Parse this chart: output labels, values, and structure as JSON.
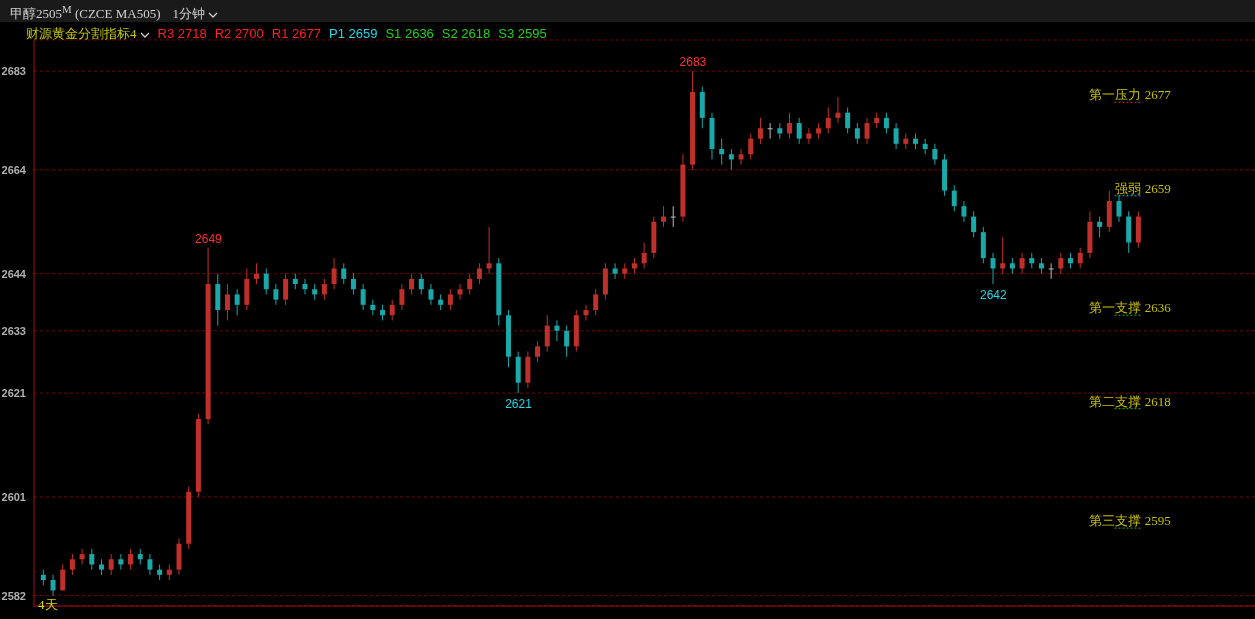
{
  "chart_data": {
    "type": "candlestick",
    "title": "甲醇2505$^{M}$ (CZCE MA505)",
    "subtitle": "1分钟",
    "categories": [
      null,
      null,
      null,
      null,
      null,
      null,
      null,
      null,
      null,
      null,
      null,
      null,
      null,
      null,
      null,
      null,
      null,
      null,
      null,
      null,
      null,
      null,
      null,
      null,
      null,
      null,
      null,
      null,
      null,
      null,
      null,
      null,
      null,
      null,
      null,
      null,
      null,
      null,
      null,
      null,
      null,
      null,
      null,
      null,
      null,
      null,
      null,
      null,
      null,
      null,
      null,
      null,
      null,
      null,
      null,
      null,
      null,
      null,
      null,
      null,
      null,
      null,
      null,
      null,
      null,
      null,
      null,
      null,
      null,
      null,
      null,
      null,
      null,
      null,
      null,
      null,
      null,
      null,
      null,
      null,
      null,
      null,
      null,
      null,
      null,
      null,
      null,
      null,
      null,
      null,
      null,
      null,
      null,
      null,
      null,
      null,
      null,
      null,
      null,
      null,
      null,
      null,
      null,
      null,
      null,
      null,
      null,
      null,
      null,
      null,
      null,
      null,
      null,
      null
    ],
    "ohlc": [
      [
        2586,
        2587,
        2584,
        2585
      ],
      [
        2585,
        2586,
        2582,
        2583
      ],
      [
        2583,
        2588,
        2583,
        2587
      ],
      [
        2587,
        2590,
        2586,
        2589
      ],
      [
        2589,
        2591,
        2588,
        2590
      ],
      [
        2590,
        2591,
        2587,
        2588
      ],
      [
        2588,
        2589,
        2586,
        2587
      ],
      [
        2587,
        2590,
        2586,
        2589
      ],
      [
        2589,
        2590,
        2587,
        2588
      ],
      [
        2588,
        2591,
        2587,
        2590
      ],
      [
        2590,
        2591,
        2588,
        2589
      ],
      [
        2589,
        2590,
        2586,
        2587
      ],
      [
        2587,
        2588,
        2585,
        2586
      ],
      [
        2586,
        2588,
        2585,
        2587
      ],
      [
        2587,
        2593,
        2586,
        2592
      ],
      [
        2592,
        2603,
        2591,
        2602
      ],
      [
        2602,
        2617,
        2601,
        2616
      ],
      [
        2616,
        2649,
        2615,
        2642
      ],
      [
        2642,
        2644,
        2634,
        2637
      ],
      [
        2637,
        2642,
        2635,
        2640
      ],
      [
        2640,
        2641,
        2636,
        2638
      ],
      [
        2638,
        2645,
        2637,
        2643
      ],
      [
        2643,
        2646,
        2642,
        2644
      ],
      [
        2644,
        2645,
        2640,
        2641
      ],
      [
        2641,
        2642,
        2638,
        2639
      ],
      [
        2639,
        2644,
        2638,
        2643
      ],
      [
        2643,
        2644,
        2641,
        2642
      ],
      [
        2642,
        2643,
        2640,
        2641
      ],
      [
        2641,
        2642,
        2639,
        2640
      ],
      [
        2640,
        2643,
        2639,
        2642
      ],
      [
        2642,
        2647,
        2641,
        2645
      ],
      [
        2645,
        2646,
        2642,
        2643
      ],
      [
        2643,
        2644,
        2640,
        2641
      ],
      [
        2641,
        2642,
        2637,
        2638
      ],
      [
        2638,
        2639,
        2636,
        2637
      ],
      [
        2637,
        2638,
        2635,
        2636
      ],
      [
        2636,
        2639,
        2635,
        2638
      ],
      [
        2638,
        2642,
        2637,
        2641
      ],
      [
        2641,
        2644,
        2640,
        2643
      ],
      [
        2643,
        2644,
        2640,
        2641
      ],
      [
        2641,
        2642,
        2638,
        2639
      ],
      [
        2639,
        2640,
        2637,
        2638
      ],
      [
        2638,
        2641,
        2637,
        2640
      ],
      [
        2640,
        2642,
        2639,
        2641
      ],
      [
        2641,
        2644,
        2640,
        2643
      ],
      [
        2643,
        2646,
        2642,
        2645
      ],
      [
        2645,
        2653,
        2644,
        2646
      ],
      [
        2646,
        2647,
        2634,
        2636
      ],
      [
        2636,
        2637,
        2626,
        2628
      ],
      [
        2628,
        2629,
        2621,
        2623
      ],
      [
        2623,
        2629,
        2622,
        2628
      ],
      [
        2628,
        2631,
        2627,
        2630
      ],
      [
        2630,
        2636,
        2629,
        2634
      ],
      [
        2634,
        2635,
        2631,
        2633
      ],
      [
        2633,
        2634,
        2628,
        2630
      ],
      [
        2630,
        2637,
        2629,
        2636
      ],
      [
        2636,
        2638,
        2635,
        2637
      ],
      [
        2637,
        2641,
        2636,
        2640
      ],
      [
        2640,
        2646,
        2639,
        2645
      ],
      [
        2645,
        2646,
        2643,
        2644
      ],
      [
        2644,
        2646,
        2643,
        2645
      ],
      [
        2645,
        2647,
        2644,
        2646
      ],
      [
        2646,
        2650,
        2645,
        2648
      ],
      [
        2648,
        2655,
        2647,
        2654
      ],
      [
        2654,
        2657,
        2653,
        2655
      ],
      [
        2655,
        2657,
        2653,
        2655
      ],
      [
        2655,
        2667,
        2654,
        2665
      ],
      [
        2665,
        2683,
        2664,
        2679
      ],
      [
        2679,
        2680,
        2672,
        2674
      ],
      [
        2674,
        2675,
        2666,
        2668
      ],
      [
        2668,
        2670,
        2665,
        2667
      ],
      [
        2667,
        2668,
        2664,
        2666
      ],
      [
        2666,
        2668,
        2665,
        2667
      ],
      [
        2667,
        2671,
        2666,
        2670
      ],
      [
        2670,
        2674,
        2669,
        2672
      ],
      [
        2672,
        2673,
        2670,
        2672
      ],
      [
        2672,
        2673,
        2670,
        2671
      ],
      [
        2671,
        2675,
        2670,
        2673
      ],
      [
        2673,
        2674,
        2669,
        2670
      ],
      [
        2670,
        2672,
        2669,
        2671
      ],
      [
        2671,
        2673,
        2670,
        2672
      ],
      [
        2672,
        2676,
        2671,
        2674
      ],
      [
        2674,
        2678,
        2673,
        2675
      ],
      [
        2675,
        2676,
        2671,
        2672
      ],
      [
        2672,
        2673,
        2669,
        2670
      ],
      [
        2670,
        2674,
        2669,
        2673
      ],
      [
        2673,
        2675,
        2672,
        2674
      ],
      [
        2674,
        2675,
        2671,
        2672
      ],
      [
        2672,
        2673,
        2668,
        2669
      ],
      [
        2669,
        2671,
        2668,
        2670
      ],
      [
        2670,
        2671,
        2668,
        2669
      ],
      [
        2669,
        2670,
        2667,
        2668
      ],
      [
        2668,
        2669,
        2665,
        2666
      ],
      [
        2666,
        2667,
        2659,
        2660
      ],
      [
        2660,
        2661,
        2656,
        2657
      ],
      [
        2657,
        2658,
        2654,
        2655
      ],
      [
        2655,
        2656,
        2651,
        2652
      ],
      [
        2652,
        2653,
        2646,
        2647
      ],
      [
        2647,
        2648,
        2642,
        2645
      ],
      [
        2645,
        2651,
        2644,
        2646
      ],
      [
        2646,
        2647,
        2644,
        2645
      ],
      [
        2645,
        2648,
        2644,
        2647
      ],
      [
        2647,
        2648,
        2645,
        2646
      ],
      [
        2646,
        2647,
        2644,
        2645
      ],
      [
        2645,
        2646,
        2643,
        2645
      ],
      [
        2645,
        2648,
        2644,
        2647
      ],
      [
        2647,
        2648,
        2645,
        2646
      ],
      [
        2646,
        2649,
        2645,
        2648
      ],
      [
        2648,
        2656,
        2647,
        2654
      ],
      [
        2654,
        2655,
        2651,
        2653
      ],
      [
        2653,
        2660,
        2652,
        2658
      ],
      [
        2658,
        2659,
        2654,
        2655
      ],
      [
        2655,
        2656,
        2648,
        2650
      ],
      [
        2650,
        2656,
        2649,
        2655
      ]
    ],
    "ylim": [
      2580,
      2689
    ],
    "yticks": [
      2582,
      2601,
      2621,
      2633,
      2644,
      2664,
      2683
    ],
    "grid": "y",
    "tick_labels": "y",
    "ref_lines": [
      {
        "axis": "y",
        "value": 2677,
        "label": "第一压力 2677",
        "color": "#c03030"
      },
      {
        "axis": "y",
        "value": 2659,
        "label": "强弱 2659",
        "color": "#20c0c0"
      },
      {
        "axis": "y",
        "value": 2636,
        "label": "第一支撑 2636",
        "color": "#20b020"
      },
      {
        "axis": "y",
        "value": 2618,
        "label": "第二支撑 2618",
        "color": "#20b020"
      },
      {
        "axis": "y",
        "value": 2595,
        "label": "第三支撑 2595",
        "color": "#20b020"
      }
    ],
    "annotations": [
      "财源黄金分割指标4",
      "R3 2718",
      "R2 2700",
      "R1 2677",
      "P1 2659",
      "S1 2636",
      "S2 2618",
      "S3 2595",
      "4天",
      {
        "text": "2649",
        "y": 2649
      },
      {
        "text": "2683",
        "y": 2683
      },
      {
        "text": "2621",
        "y": 2621
      },
      {
        "text": "2642",
        "y": 2642
      }
    ]
  }
}
